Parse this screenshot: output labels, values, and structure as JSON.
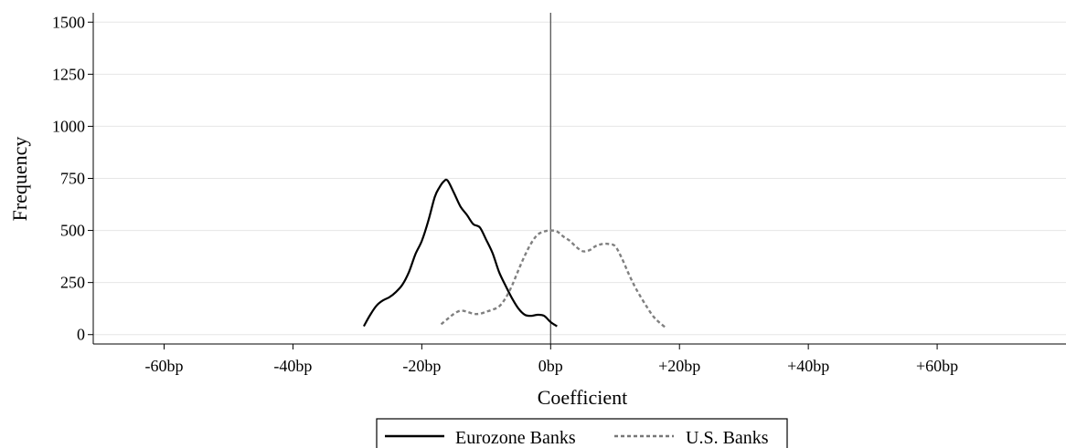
{
  "chart_data": {
    "type": "line",
    "title": "",
    "xlabel": "Coefficient",
    "ylabel": "Frequency",
    "xlim": [
      -71,
      80
    ],
    "ylim": [
      -45,
      1545
    ],
    "x_ticks": [
      -60,
      -40,
      -20,
      0,
      20,
      40,
      60
    ],
    "x_tick_labels": [
      "-60bp",
      "-40bp",
      "-20bp",
      "0bp",
      "+20bp",
      "+40bp",
      "+60bp"
    ],
    "y_ticks": [
      0,
      250,
      500,
      750,
      1000,
      1250,
      1500
    ],
    "y_tick_labels": [
      "0",
      "250",
      "500",
      "750",
      "1000",
      "1250",
      "1500"
    ],
    "grid": "horizontal",
    "reference_line_x": 0,
    "legend_position": "bottom",
    "series": [
      {
        "name": "Eurozone Banks",
        "style": "solid",
        "color": "#000000",
        "x": [
          -29,
          -28,
          -27,
          -26,
          -25,
          -24,
          -23,
          -22,
          -21,
          -20,
          -19,
          -18,
          -17.3,
          -16.6,
          -16,
          -15,
          -14,
          -13,
          -12,
          -11,
          -10,
          -9,
          -8,
          -7,
          -6,
          -5,
          -4,
          -3,
          -2,
          -1,
          0,
          1
        ],
        "y": [
          40,
          95,
          140,
          165,
          180,
          205,
          240,
          300,
          385,
          450,
          545,
          660,
          705,
          735,
          740,
          680,
          615,
          575,
          530,
          515,
          455,
          390,
          300,
          235,
          175,
          125,
          95,
          90,
          95,
          90,
          60,
          40
        ]
      },
      {
        "name": "U.S. Banks",
        "style": "dashed",
        "color": "#808080",
        "x": [
          -17,
          -16,
          -15,
          -14,
          -13,
          -12,
          -11,
          -10,
          -9,
          -8,
          -7,
          -6,
          -5,
          -4,
          -3,
          -2,
          -1,
          0,
          1,
          2,
          3,
          4,
          5,
          6,
          7,
          8,
          9,
          10,
          11,
          12,
          13,
          14,
          15,
          16,
          17,
          18
        ],
        "y": [
          50,
          75,
          100,
          115,
          110,
          100,
          100,
          110,
          120,
          135,
          175,
          235,
          310,
          380,
          440,
          480,
          495,
          500,
          495,
          470,
          450,
          420,
          400,
          405,
          425,
          435,
          435,
          425,
          370,
          300,
          235,
          180,
          130,
          85,
          55,
          30
        ]
      }
    ]
  }
}
